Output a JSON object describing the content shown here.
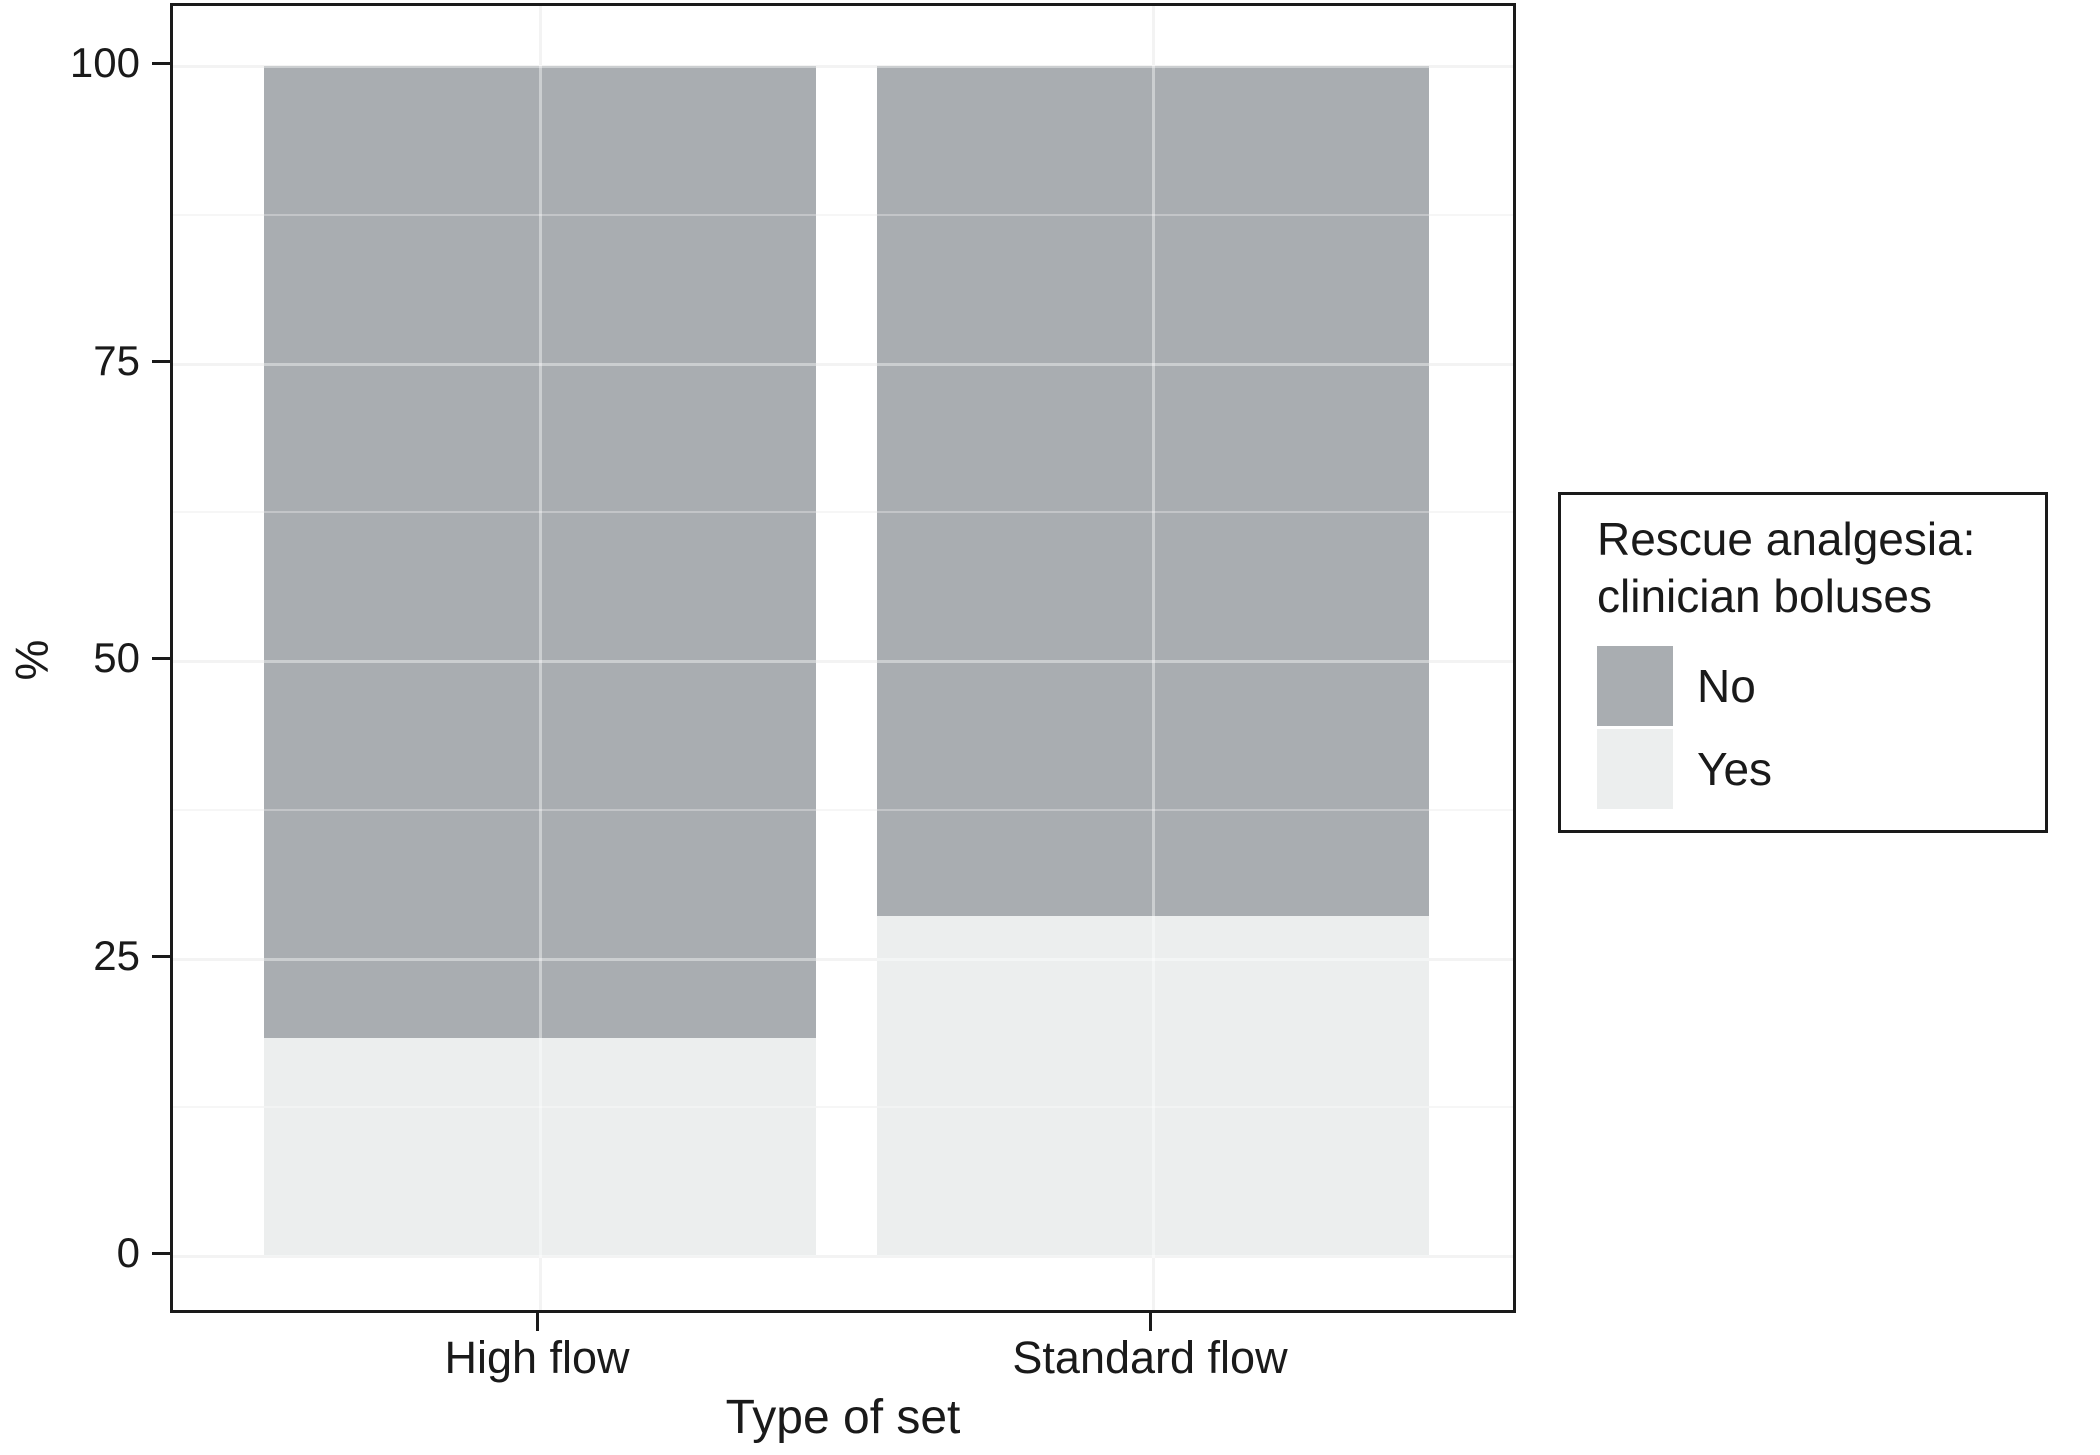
{
  "chart_data": {
    "type": "bar",
    "stacked": true,
    "unit": "percent",
    "title": "",
    "xlabel": "Type of set",
    "ylabel": "%",
    "categories": [
      "High flow",
      "Standard flow"
    ],
    "series": [
      {
        "name": "No",
        "color": "#a9adb1",
        "values": [
          81.7,
          71.4
        ]
      },
      {
        "name": "Yes",
        "color": "#eceeee",
        "values": [
          18.3,
          28.6
        ]
      }
    ],
    "ylim": [
      0,
      100
    ],
    "yticks": [
      0,
      25,
      50,
      75,
      100
    ],
    "grid": "major and minor horizontal, major vertical at category centers, drawn over bars",
    "legend_position": "right",
    "legend_title_lines": [
      "Rescue analgesia:",
      "clinician boluses"
    ]
  },
  "colors": {
    "background": "#ffffff",
    "panel_border": "#1a1a1a",
    "text": "#1a1a1a",
    "grid_major": "#ececec",
    "grid_minor": "#f3f3f3",
    "bar_no": "#a9adb1",
    "bar_yes": "#eceeee"
  }
}
